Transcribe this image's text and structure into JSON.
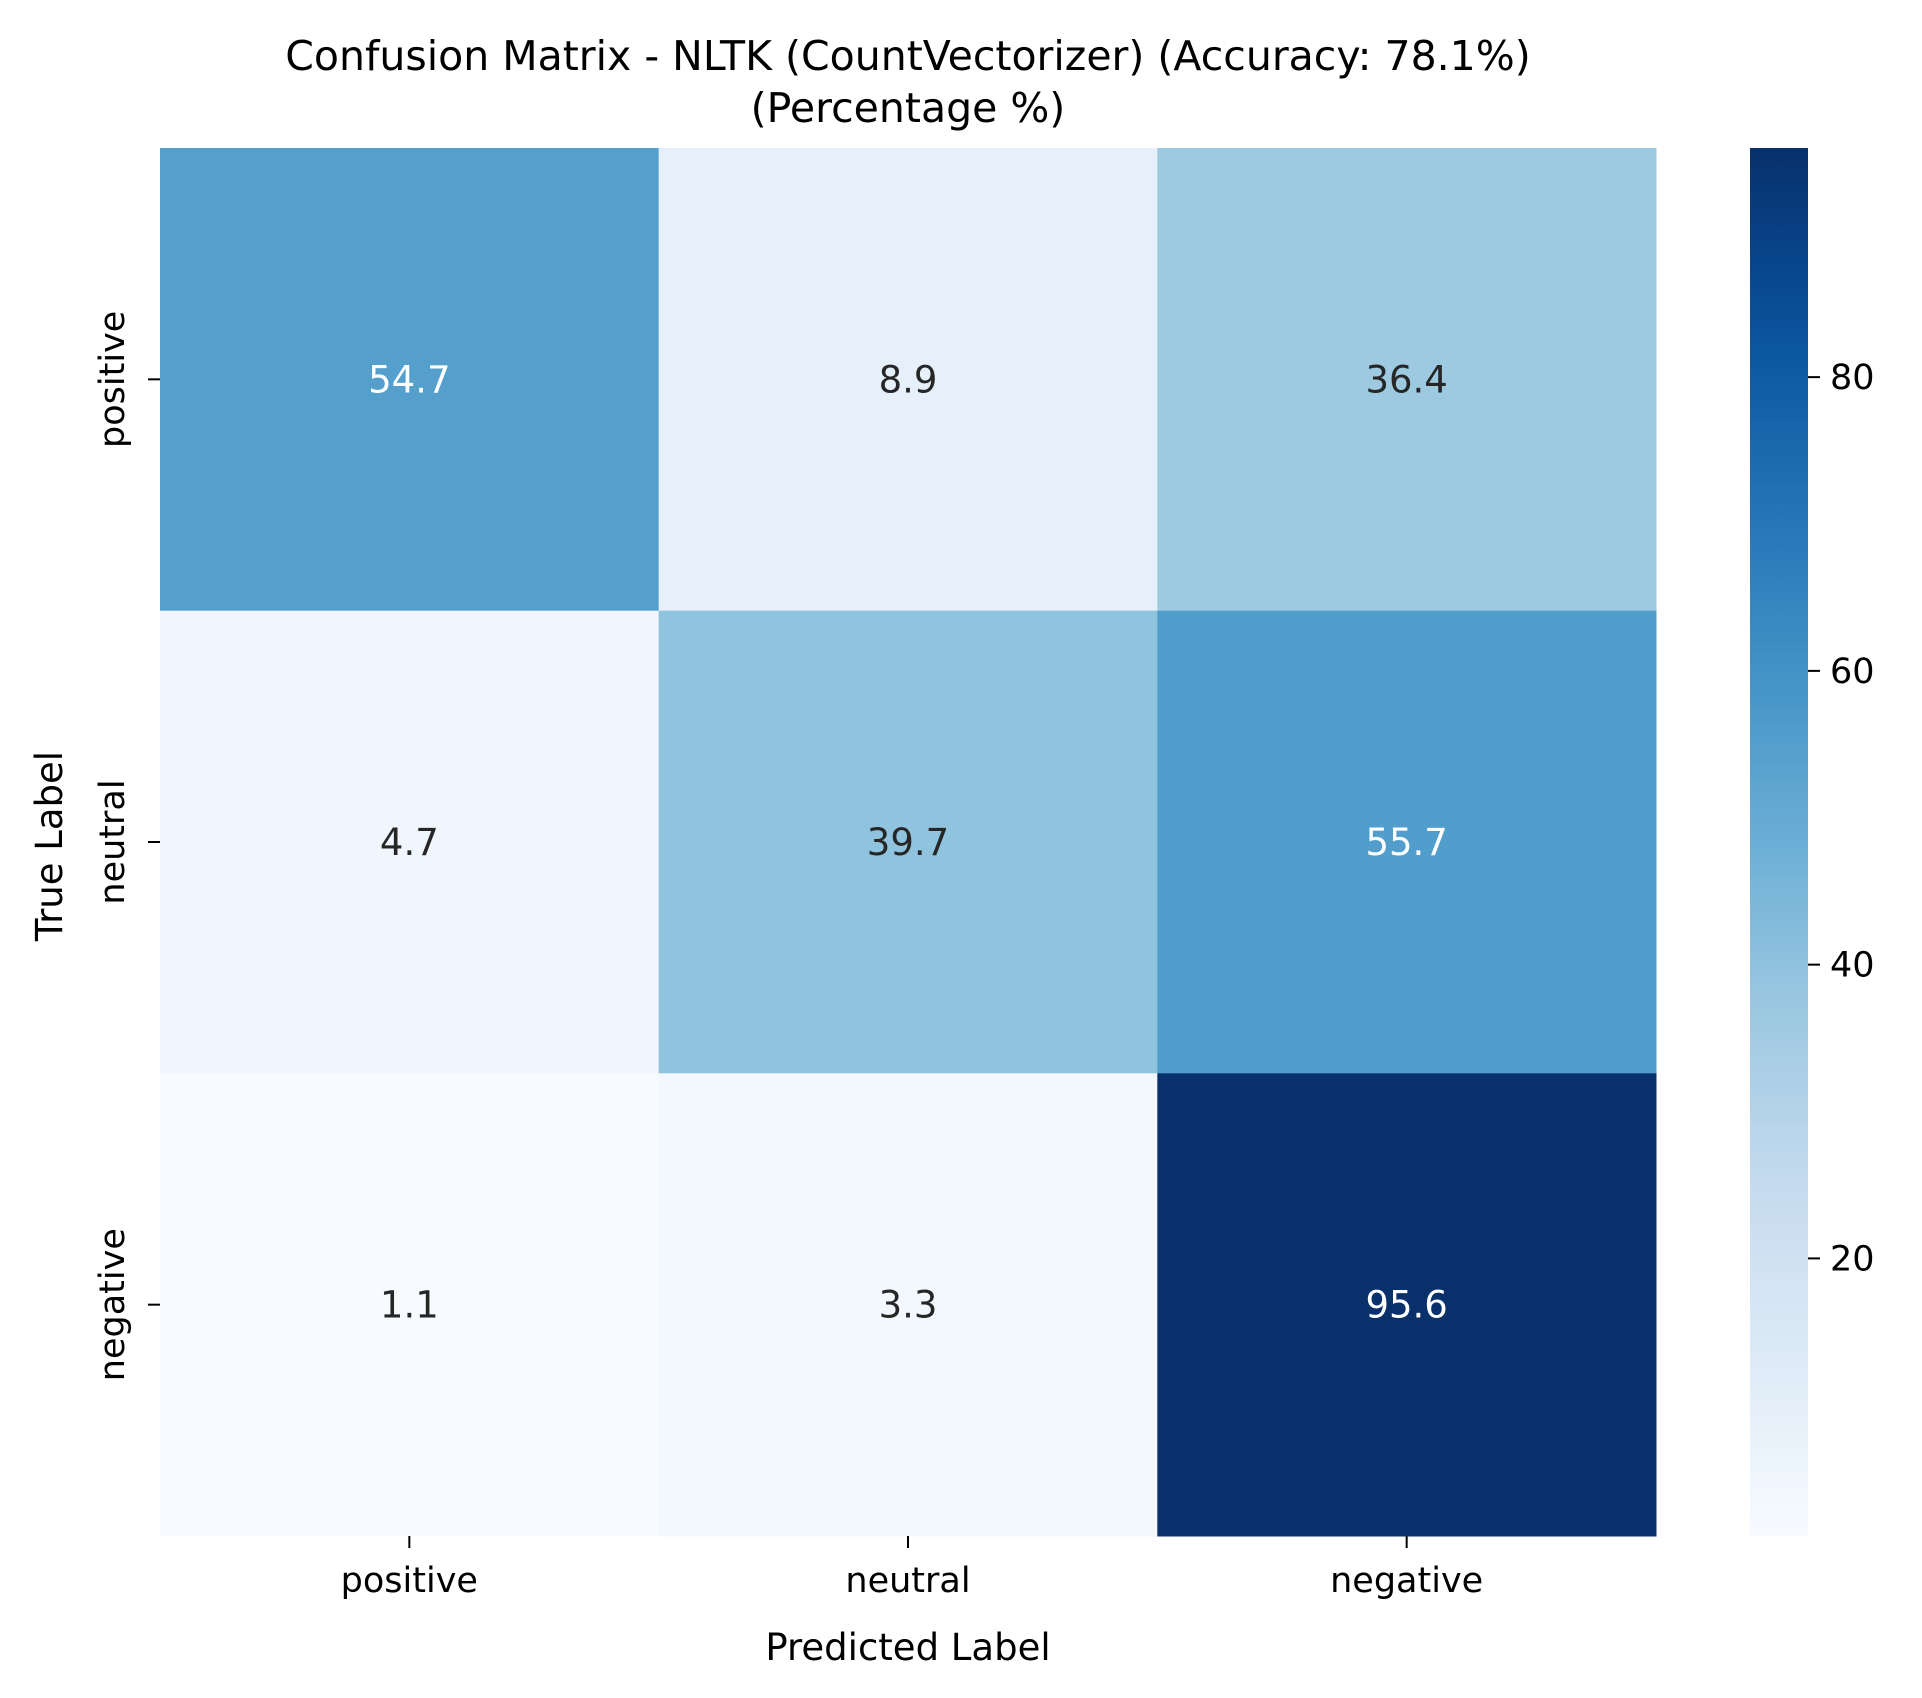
{
  "chart_data": {
    "type": "heatmap",
    "title": "Confusion Matrix - NLTK (CountVectorizer) (Accuracy: 78.1%)",
    "subtitle": "(Percentage %)",
    "xlabel": "Predicted Label",
    "ylabel": "True Label",
    "x_categories": [
      "positive",
      "neutral",
      "negative"
    ],
    "y_categories": [
      "positive",
      "neutral",
      "negative"
    ],
    "values": [
      [
        54.7,
        8.9,
        36.4
      ],
      [
        4.7,
        39.7,
        55.7
      ],
      [
        1.1,
        3.3,
        95.6
      ]
    ],
    "value_labels": [
      [
        "54.7",
        "8.9",
        "36.4"
      ],
      [
        "4.7",
        "39.7",
        "55.7"
      ],
      [
        "1.1",
        "3.3",
        "95.6"
      ]
    ],
    "colormap": "Blues",
    "colorbar": {
      "vmin": 1.1,
      "vmax": 95.6,
      "ticks": [
        20,
        40,
        60,
        80
      ],
      "tick_labels": [
        "20",
        "40",
        "60",
        "80"
      ]
    },
    "grid": false,
    "legend": "colorbar-right"
  }
}
